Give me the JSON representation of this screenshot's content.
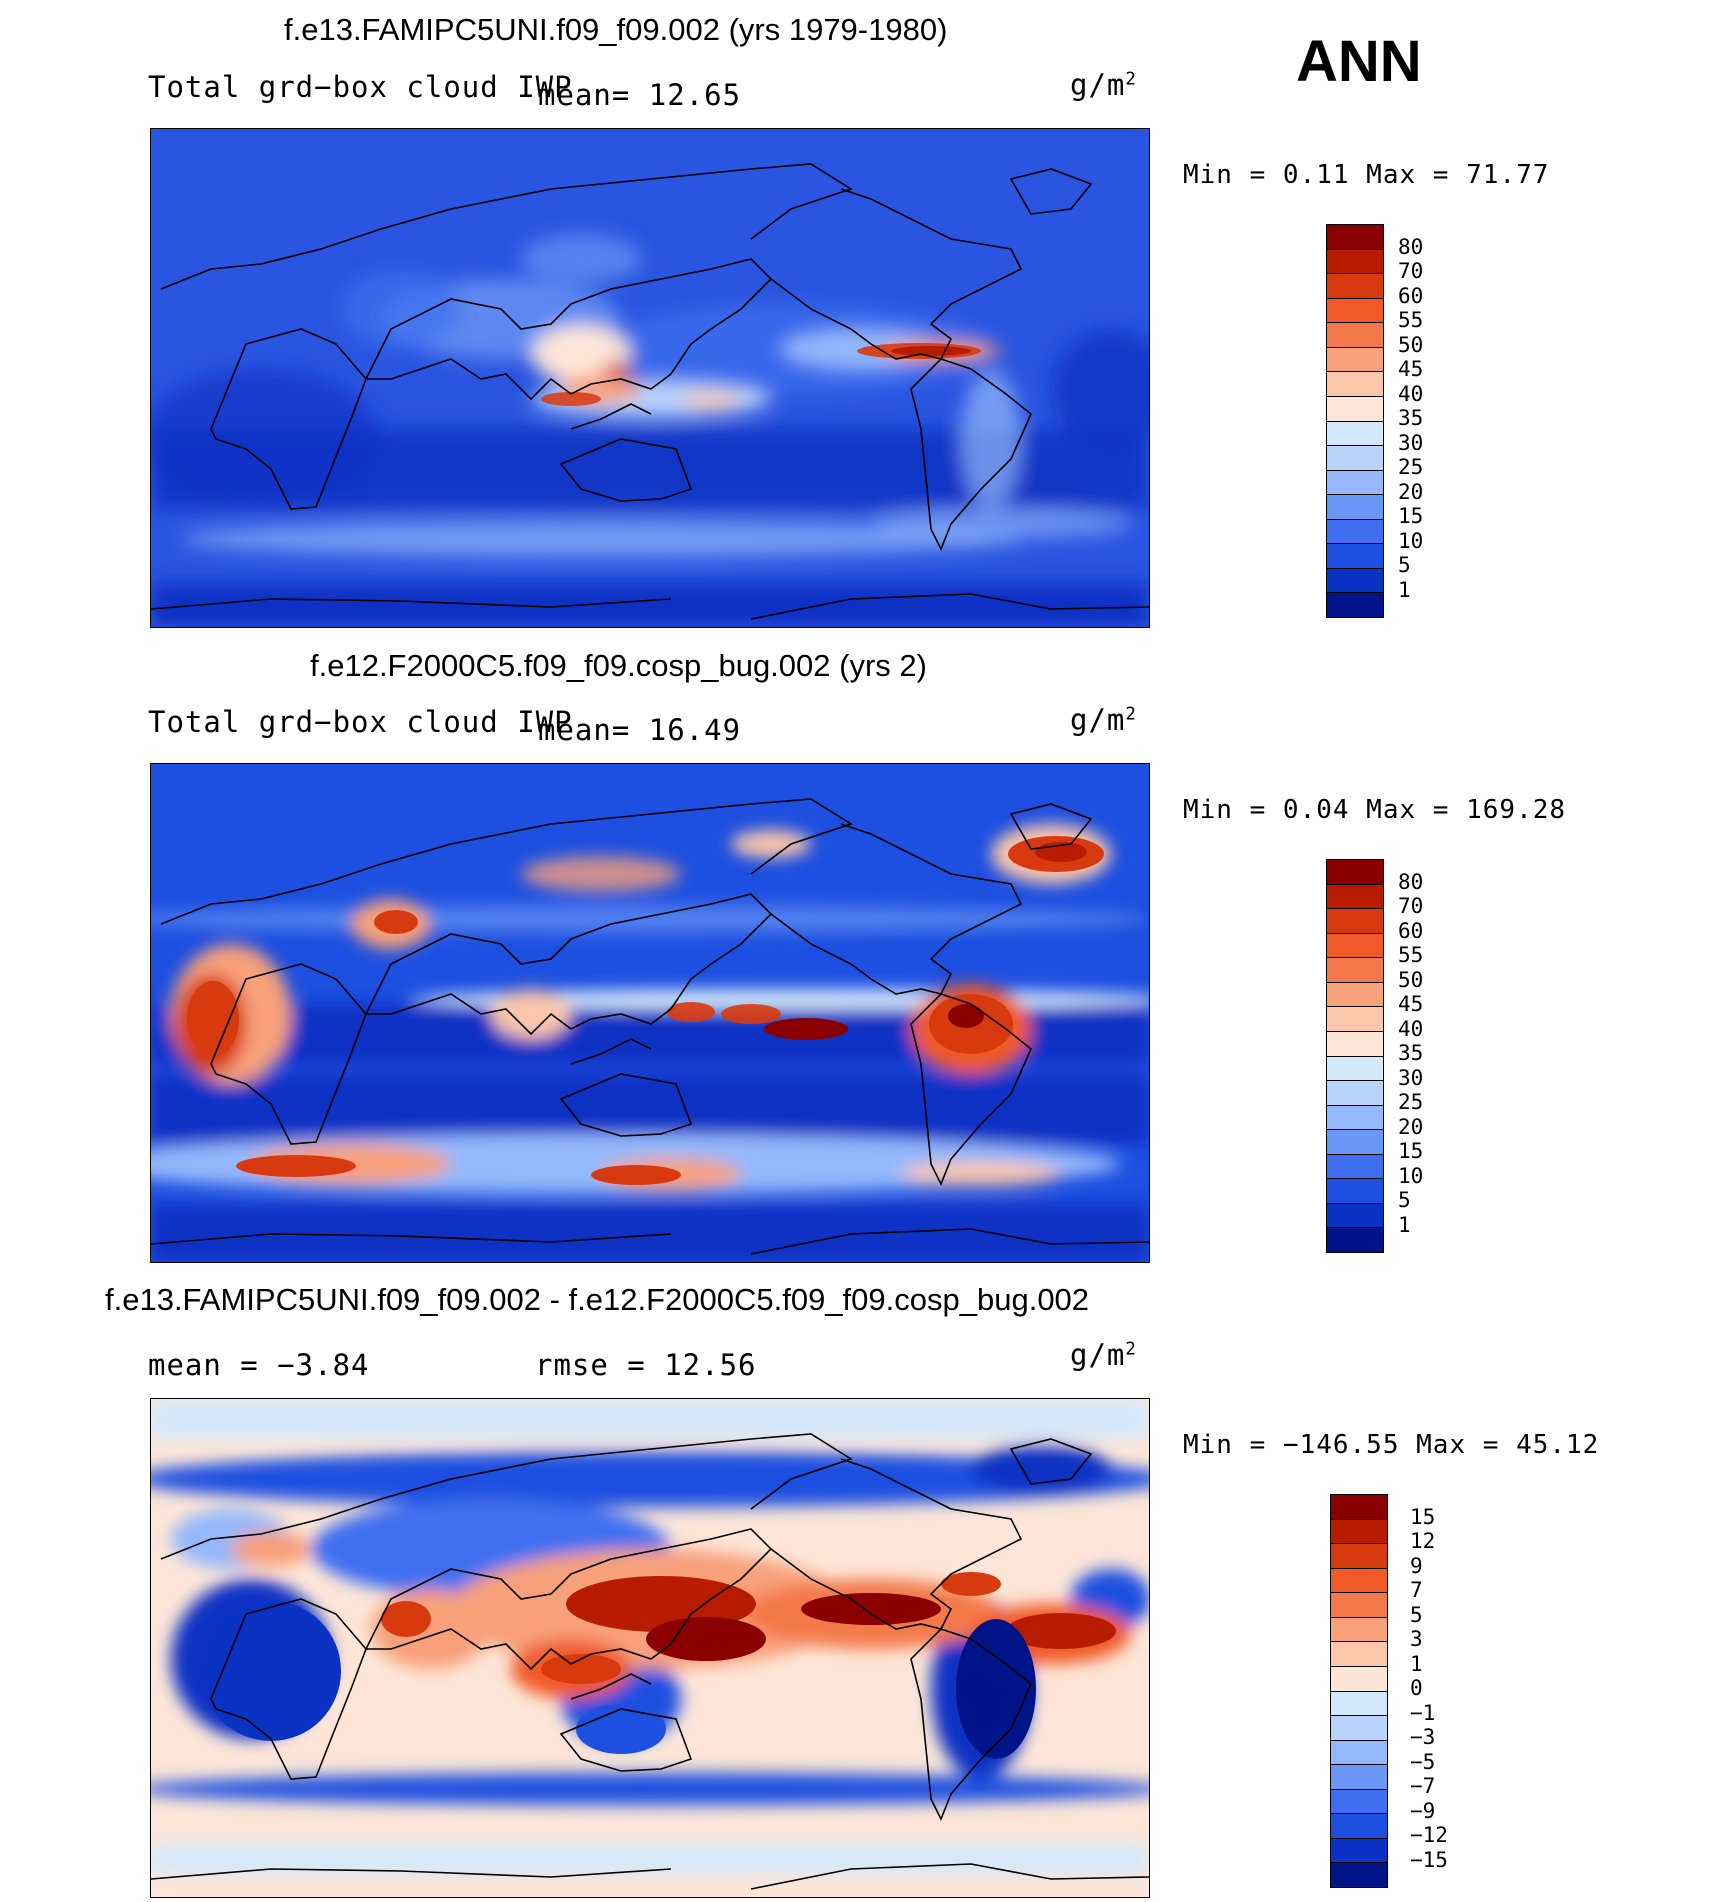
{
  "season": "ANN",
  "panels": [
    {
      "title": "f.e13.FAMIPC5UNI.f09_f09.002 (yrs 1979-1980)",
      "left_text": "Total grd−box cloud IWP",
      "mean_text": "mean=   12.65",
      "units_base": "g/m",
      "units_exp": "2",
      "minmax": "Min =    0.11  Max =   71.77",
      "levels": [
        "80",
        "70",
        "60",
        "55",
        "50",
        "45",
        "40",
        "35",
        "30",
        "25",
        "20",
        "15",
        "10",
        "5",
        "1"
      ],
      "colors": [
        "#8a0000",
        "#b81c00",
        "#d83a10",
        "#f05a28",
        "#f4794a",
        "#f8a07a",
        "#fbc6aa",
        "#fde6d8",
        "#d4e8fb",
        "#b8d4fb",
        "#94b8fb",
        "#6a96f5",
        "#3f6ff0",
        "#1d4fe0",
        "#0a33c4",
        "#00148a"
      ]
    },
    {
      "title": "f.e12.F2000C5.f09_f09.cosp_bug.002 (yrs 2)",
      "left_text": "Total grd−box cloud IWP",
      "mean_text": "mean=   16.49",
      "units_base": "g/m",
      "units_exp": "2",
      "minmax": "Min =    0.04  Max =  169.28",
      "levels": [
        "80",
        "70",
        "60",
        "55",
        "50",
        "45",
        "40",
        "35",
        "30",
        "25",
        "20",
        "15",
        "10",
        "5",
        "1"
      ],
      "colors": [
        "#8a0000",
        "#b81c00",
        "#d83a10",
        "#f05a28",
        "#f4794a",
        "#f8a07a",
        "#fbc6aa",
        "#fde6d8",
        "#d4e8fb",
        "#b8d4fb",
        "#94b8fb",
        "#6a96f5",
        "#3f6ff0",
        "#1d4fe0",
        "#0a33c4",
        "#00148a"
      ]
    },
    {
      "title": "f.e13.FAMIPC5UNI.f09_f09.002 - f.e12.F2000C5.f09_f09.cosp_bug.002",
      "mean_text": "mean =   −3.84",
      "rmse_text": "rmse =   12.56",
      "units_base": "g/m",
      "units_exp": "2",
      "minmax": "Min = −146.55  Max =   45.12",
      "levels": [
        "15",
        "12",
        "9",
        "7",
        "5",
        "3",
        "1",
        "0",
        "−1",
        "−3",
        "−5",
        "−7",
        "−9",
        "−12",
        "−15"
      ],
      "colors": [
        "#8a0000",
        "#b81c00",
        "#d83a10",
        "#f05a28",
        "#f4794a",
        "#f8a07a",
        "#fbc6aa",
        "#fde6d8",
        "#d4e8fb",
        "#b8d4fb",
        "#94b8fb",
        "#6a96f5",
        "#3f6ff0",
        "#1d4fe0",
        "#0a33c4",
        "#00148a"
      ]
    }
  ],
  "chart_data": [
    {
      "type": "heatmap",
      "title": "f.e13.FAMIPC5UNI.f09_f09.002 (yrs 1979-1980)",
      "variable": "Total grd-box cloud IWP",
      "units": "g/m2",
      "mean": 12.65,
      "min": 0.11,
      "max": 71.77,
      "contour_levels": [
        1,
        5,
        10,
        15,
        20,
        25,
        30,
        35,
        40,
        45,
        50,
        55,
        60,
        70,
        80
      ]
    },
    {
      "type": "heatmap",
      "title": "f.e12.F2000C5.f09_f09.cosp_bug.002 (yrs 2)",
      "variable": "Total grd-box cloud IWP",
      "units": "g/m2",
      "mean": 16.49,
      "min": 0.04,
      "max": 169.28,
      "contour_levels": [
        1,
        5,
        10,
        15,
        20,
        25,
        30,
        35,
        40,
        45,
        50,
        55,
        60,
        70,
        80
      ]
    },
    {
      "type": "heatmap",
      "title": "f.e13.FAMIPC5UNI.f09_f09.002 - f.e12.F2000C5.f09_f09.cosp_bug.002",
      "units": "g/m2",
      "mean": -3.84,
      "rmse": 12.56,
      "min": -146.55,
      "max": 45.12,
      "contour_levels": [
        -15,
        -12,
        -9,
        -7,
        -5,
        -3,
        -1,
        0,
        1,
        3,
        5,
        7,
        9,
        12,
        15
      ]
    }
  ]
}
